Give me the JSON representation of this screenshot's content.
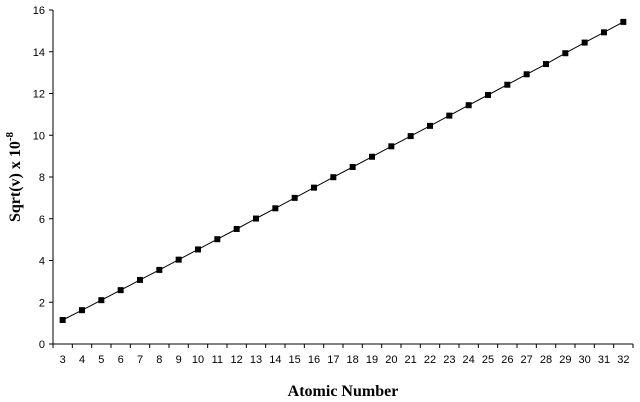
{
  "chart_data": {
    "type": "line",
    "title": "",
    "xlabel": "Atomic Number",
    "ylabel_main": "Sqrt(v) x 10",
    "ylabel_exp": "-8",
    "x": [
      3,
      4,
      5,
      6,
      7,
      8,
      9,
      10,
      11,
      12,
      13,
      14,
      15,
      16,
      17,
      18,
      19,
      20,
      21,
      22,
      23,
      24,
      25,
      26,
      27,
      28,
      29,
      30,
      31,
      32
    ],
    "y": [
      1.15,
      1.62,
      2.1,
      2.58,
      3.07,
      3.55,
      4.04,
      4.53,
      5.02,
      5.51,
      6.01,
      6.5,
      7.0,
      7.49,
      7.99,
      8.48,
      8.97,
      9.47,
      9.96,
      10.45,
      10.94,
      11.44,
      11.93,
      12.42,
      12.92,
      13.41,
      13.93,
      14.44,
      14.93,
      15.43
    ],
    "xticks": [
      "3",
      "4",
      "5",
      "6",
      "7",
      "8",
      "9",
      "10",
      "11",
      "12",
      "13",
      "14",
      "15",
      "16",
      "17",
      "18",
      "19",
      "20",
      "21",
      "22",
      "23",
      "24",
      "25",
      "26",
      "27",
      "28",
      "29",
      "30",
      "31",
      "32"
    ],
    "yticks": [
      "0",
      "2",
      "4",
      "6",
      "8",
      "10",
      "12",
      "14",
      "16"
    ],
    "xlim": [
      2.5,
      32.5
    ],
    "ylim": [
      0,
      16
    ],
    "grid": false,
    "legend": "none",
    "marker": "square",
    "line_color": "#000000",
    "marker_color": "#000000"
  }
}
